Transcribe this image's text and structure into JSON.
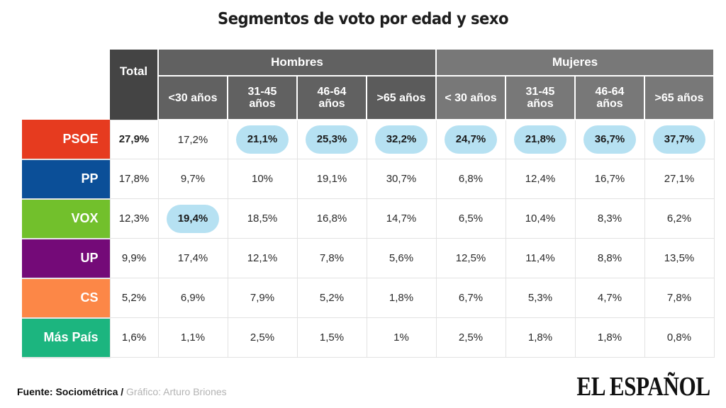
{
  "chart_data": {
    "type": "table",
    "title": "Segmentos de voto por edad y sexo",
    "total_header": "Total",
    "groups": [
      {
        "name": "Hombres",
        "columns": [
          "<30 años",
          "31-45 años",
          "46-64 años",
          ">65 años"
        ]
      },
      {
        "name": "Mujeres",
        "columns": [
          "< 30 años",
          "31-45 años",
          "46-64 años",
          ">65 años"
        ]
      }
    ],
    "highlight_color": "#b6e1f2",
    "rows": [
      {
        "party": "PSOE",
        "color": "#e63b1f",
        "total": "27,9%",
        "values": [
          "17,2%",
          "21,1%",
          "25,3%",
          "32,2%",
          "24,7%",
          "21,8%",
          "36,7%",
          "37,7%"
        ],
        "highlight": [
          false,
          true,
          true,
          true,
          true,
          true,
          true,
          true
        ]
      },
      {
        "party": "PP",
        "color": "#0b4f98",
        "total": "17,8%",
        "values": [
          "9,7%",
          "10%",
          "19,1%",
          "30,7%",
          "6,8%",
          "12,4%",
          "16,7%",
          "27,1%"
        ],
        "highlight": [
          false,
          false,
          false,
          false,
          false,
          false,
          false,
          false
        ]
      },
      {
        "party": "VOX",
        "color": "#72c02c",
        "total": "12,3%",
        "values": [
          "19,4%",
          "18,5%",
          "16,8%",
          "14,7%",
          "6,5%",
          "10,4%",
          "8,3%",
          "6,2%"
        ],
        "highlight": [
          true,
          false,
          false,
          false,
          false,
          false,
          false,
          false
        ]
      },
      {
        "party": "UP",
        "color": "#740a78",
        "total": "9,9%",
        "values": [
          "17,4%",
          "12,1%",
          "7,8%",
          "5,6%",
          "12,5%",
          "11,4%",
          "8,8%",
          "13,5%"
        ],
        "highlight": [
          false,
          false,
          false,
          false,
          false,
          false,
          false,
          false
        ]
      },
      {
        "party": "CS",
        "color": "#fc8747",
        "total": "5,2%",
        "values": [
          "6,9%",
          "7,9%",
          "5,2%",
          "1,8%",
          "6,7%",
          "5,3%",
          "4,7%",
          "7,8%"
        ],
        "highlight": [
          false,
          false,
          false,
          false,
          false,
          false,
          false,
          false
        ]
      },
      {
        "party": "Más País",
        "color": "#1cb57f",
        "total": "1,6%",
        "values": [
          "1,1%",
          "2,5%",
          "1,5%",
          "1%",
          "2,5%",
          "1,8%",
          "1,8%",
          "0,8%"
        ],
        "highlight": [
          false,
          false,
          false,
          false,
          false,
          false,
          false,
          false
        ]
      }
    ]
  },
  "footer": {
    "source": "Fuente: Sociométrica",
    "separator": "/",
    "credit": "Gráfico: Arturo Briones"
  },
  "logo": "EL ESPAÑOL"
}
